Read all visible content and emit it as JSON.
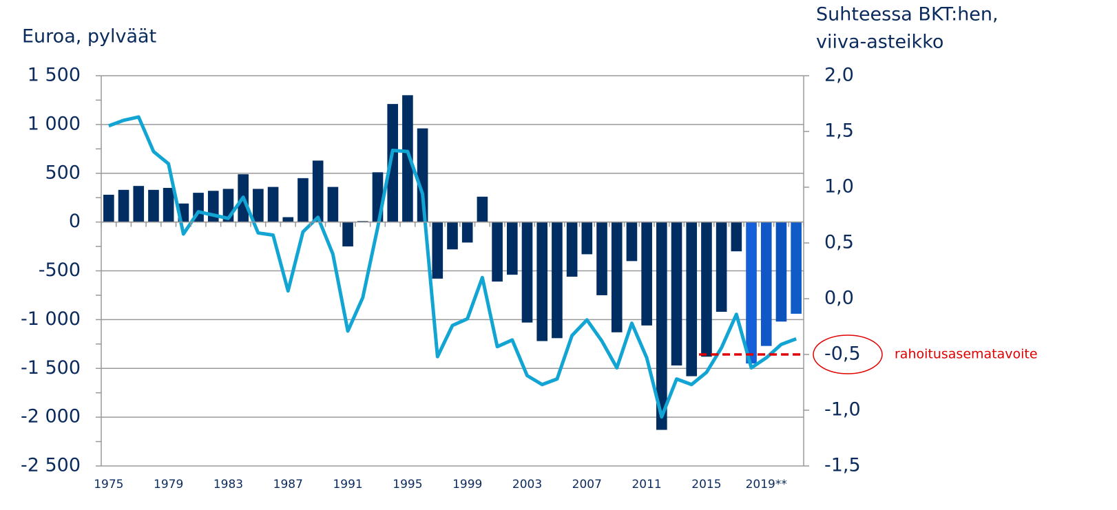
{
  "chart_data": {
    "type": "bar_line",
    "ylabel": "Euroa, pylväät",
    "y2label": [
      "Suhteessa BKT:hen,",
      "viiva-asteikko"
    ],
    "categories": [
      "1975",
      null,
      null,
      null,
      "1979",
      null,
      null,
      null,
      "1983",
      null,
      null,
      null,
      "1987",
      null,
      null,
      null,
      "1991",
      null,
      null,
      null,
      "1995",
      null,
      null,
      null,
      "1999",
      null,
      null,
      null,
      "2003",
      null,
      null,
      null,
      "2007",
      null,
      null,
      null,
      "2011",
      null,
      null,
      null,
      "2015",
      null,
      null,
      null,
      "2019**",
      null,
      null
    ],
    "ylim": [
      -2500,
      1500
    ],
    "yticks": [
      {
        "value": -2500,
        "label": "-2 500"
      },
      {
        "value": -2000,
        "label": "-2 000"
      },
      {
        "value": -1500,
        "label": "-1 500"
      },
      {
        "value": -1000,
        "label": "-1 000"
      },
      -500,
      0,
      500,
      {
        "value": 1000,
        "label": "1 000"
      },
      {
        "value": 1500,
        "label": "1 500"
      }
    ],
    "y2lim": [
      -1.5,
      2.0
    ],
    "y2ticks": [
      {
        "value": -1.5,
        "label": "-1,5"
      },
      {
        "value": -1.0,
        "label": "-1,0"
      },
      {
        "value": -0.5,
        "label": "-0,5"
      },
      {
        "value": 0.0,
        "label": "0,0"
      },
      {
        "value": 0.5,
        "label": "0,5"
      },
      {
        "value": 1.0,
        "label": "1,0"
      },
      {
        "value": 1.5,
        "label": "1,5"
      },
      {
        "value": 2.0,
        "label": "2,0"
      }
    ],
    "grid": true,
    "series": [
      {
        "type": "bar",
        "axis": "y",
        "values": [
          280,
          330,
          370,
          330,
          350,
          190,
          300,
          320,
          340,
          490,
          340,
          360,
          50,
          450,
          630,
          360,
          -250,
          10,
          510,
          1210,
          1300,
          960,
          -580,
          -280,
          -210,
          260,
          -610,
          -540,
          -1030,
          -1220,
          -1190,
          -560,
          -330,
          -750,
          -1130,
          -400,
          -1060,
          -2130,
          -1470,
          -1580,
          -1380,
          -920,
          -300,
          -1450,
          -1270,
          -1020,
          -940
        ],
        "colors": [
          "#002d62",
          "#002d62",
          "#002d62",
          "#002d62",
          "#002d62",
          "#002d62",
          "#002d62",
          "#002d62",
          "#002d62",
          "#002d62",
          "#002d62",
          "#002d62",
          "#002d62",
          "#002d62",
          "#002d62",
          "#002d62",
          "#002d62",
          "#002d62",
          "#002d62",
          "#002d62",
          "#002d62",
          "#002d62",
          "#002d62",
          "#002d62",
          "#002d62",
          "#002d62",
          "#002d62",
          "#002d62",
          "#002d62",
          "#002d62",
          "#002d62",
          "#002d62",
          "#002d62",
          "#002d62",
          "#002d62",
          "#002d62",
          "#002d62",
          "#002d62",
          "#002d62",
          "#002d62",
          "#002d62",
          "#002d62",
          "#002d62",
          "#1560d8",
          "#1058c8",
          "#0c52bc",
          "#0f5cc8"
        ]
      },
      {
        "type": "line",
        "axis": "y2",
        "color": "#12a5d4",
        "values": [
          1.55,
          1.6,
          1.63,
          1.32,
          1.21,
          0.58,
          0.78,
          0.75,
          0.72,
          0.91,
          0.59,
          0.57,
          0.07,
          0.6,
          0.73,
          0.4,
          -0.29,
          0.01,
          0.64,
          1.33,
          1.32,
          0.94,
          -0.52,
          -0.24,
          -0.18,
          0.19,
          -0.43,
          -0.37,
          -0.69,
          -0.77,
          -0.72,
          -0.33,
          -0.19,
          -0.38,
          -0.62,
          -0.22,
          -0.53,
          -1.06,
          -0.72,
          -0.77,
          -0.66,
          -0.44,
          -0.14,
          -0.62,
          -0.53,
          -0.41,
          -0.36
        ]
      }
    ],
    "target": {
      "value": -0.5,
      "label": "rahoitusasematavoite",
      "color": "#e00000",
      "start_category": "2015"
    }
  }
}
